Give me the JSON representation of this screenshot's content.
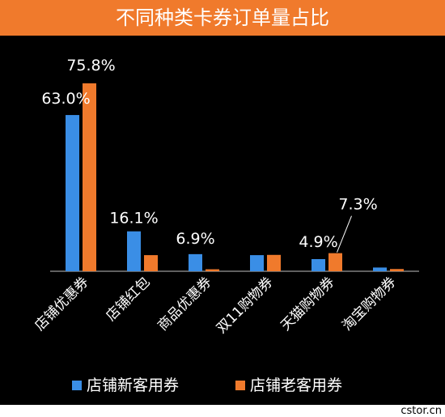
{
  "chart_data": {
    "type": "bar",
    "title": "不同种类卡券订单量占比",
    "categories": [
      "店铺优惠券",
      "店铺红包",
      "商品优惠券",
      "双11购物券",
      "天猫购物券",
      "淘宝购物券"
    ],
    "series": [
      {
        "name": "店铺新客用券",
        "color": "#3a8ee6",
        "values": [
          63.0,
          16.1,
          6.9,
          6.5,
          4.9,
          1.5
        ]
      },
      {
        "name": "店铺老客用券",
        "color": "#f07a2c",
        "values": [
          75.8,
          6.5,
          0.8,
          6.6,
          7.3,
          0.9
        ]
      }
    ],
    "data_labels": [
      {
        "category": "店铺优惠券",
        "series": "店铺新客用券",
        "text": "63.0%"
      },
      {
        "category": "店铺优惠券",
        "series": "店铺老客用券",
        "text": "75.8%"
      },
      {
        "category": "店铺红包",
        "series": "店铺新客用券",
        "text": "16.1%"
      },
      {
        "category": "商品优惠券",
        "series": "店铺新客用券",
        "text": "6.9%"
      },
      {
        "category": "天猫购物券",
        "series": "店铺新客用券",
        "text": "4.9%"
      },
      {
        "category": "天猫购物券",
        "series": "店铺老客用券",
        "text": "7.3%"
      }
    ],
    "unit": "%",
    "ylim": [
      0,
      80
    ],
    "grid": false,
    "legend_position": "bottom",
    "background": "#000000",
    "title_background": "#f07a2c",
    "text_color": "#ffffff"
  },
  "footer": {
    "source": "cstor.cn"
  }
}
